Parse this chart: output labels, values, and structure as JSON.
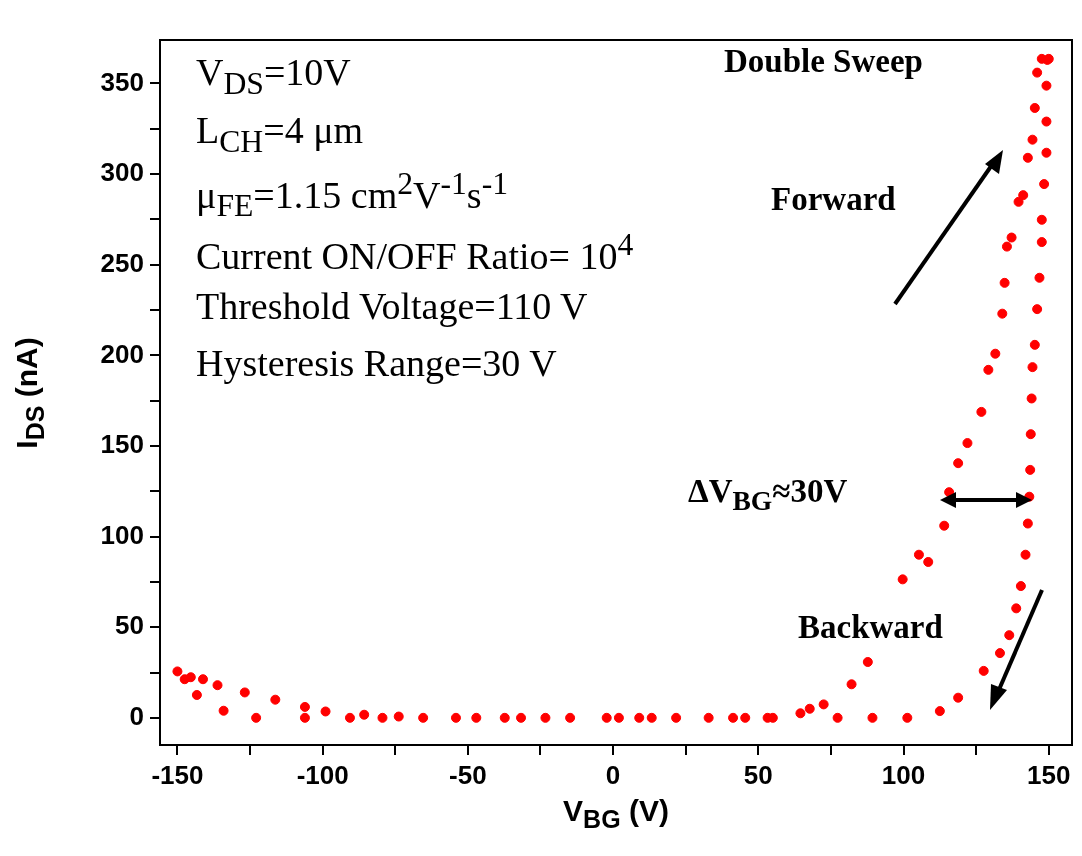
{
  "chart_data": {
    "type": "scatter",
    "xlabel": "V$_{BG}$ (V)",
    "ylabel": "I$_{DS}$ (nA)",
    "color": "#ff0000",
    "marker": "circle",
    "xlim": [
      -156,
      158
    ],
    "ylim": [
      -15,
      374
    ],
    "xticks": [
      -150,
      {
        "value": -125,
        "label": null
      },
      -100,
      {
        "value": -75,
        "label": null
      },
      -50,
      {
        "value": -25,
        "label": null
      },
      0,
      {
        "value": 25,
        "label": null
      },
      50,
      {
        "value": 75,
        "label": null
      },
      100,
      {
        "value": 125,
        "label": null
      },
      150
    ],
    "yticks": [
      0,
      {
        "value": 25,
        "label": null
      },
      50,
      {
        "value": 75,
        "label": null
      },
      100,
      {
        "value": 125,
        "label": null
      },
      150,
      {
        "value": 175,
        "label": null
      },
      200,
      {
        "value": 225,
        "label": null
      },
      250,
      {
        "value": 275,
        "label": null
      },
      300,
      {
        "value": 325,
        "label": null
      },
      350
    ],
    "x": [
      -150,
      -147.5,
      -145.4,
      -143.3,
      -141.2,
      -136.2,
      -134.1,
      -126.8,
      -122.9,
      -116.3,
      -106.1,
      -106.1,
      -99,
      -90.6,
      -85.7,
      -79.4,
      -73.8,
      -65.4,
      -54.1,
      -47.1,
      -37.3,
      -31.7,
      -23.3,
      -14.8,
      -2.2,
      2,
      9,
      13.3,
      21.7,
      32.9,
      41.3,
      45.5,
      53.2,
      55,
      64.5,
      67.7,
      72.5,
      82.1,
      87.7,
      99.7,
      105.3,
      108.5,
      114,
      115.7,
      118.8,
      122,
      126.8,
      129.2,
      131.6,
      134,
      134.8,
      135.6,
      137.2,
      139.6,
      141.2,
      142.8,
      144.4,
      145.2,
      146,
      147.6,
      150,
      149.5,
      149.2,
      149.2,
      149.2,
      148.4,
      147.6,
      147.6,
      146.8,
      146,
      145.2,
      144.4,
      144.1,
      143.8,
      143.6,
      143.3,
      142.8,
      142,
      140.4,
      138.8,
      136.4,
      133.2,
      127.6,
      118.8,
      112.5,
      101.3,
      89.3,
      77.3
    ],
    "values": [
      25.6,
      21.3,
      22.4,
      12.6,
      21.3,
      18,
      3.9,
      14,
      0,
      10,
      0,
      6,
      3.5,
      0,
      1.7,
      0,
      0.7,
      0,
      0,
      0,
      0,
      0,
      0,
      0,
      0,
      0,
      0,
      0,
      0,
      0,
      0,
      0,
      0,
      0,
      2.5,
      5,
      7.4,
      18.5,
      30.8,
      76.4,
      90,
      86,
      106,
      124.5,
      140.5,
      151.6,
      168.8,
      192,
      200.9,
      223,
      240,
      260,
      265,
      284.7,
      288.4,
      309,
      319,
      336.5,
      356,
      363.6,
      363.6,
      363,
      348.8,
      329,
      311.8,
      294.5,
      274.8,
      262.5,
      242.8,
      225.5,
      205.8,
      193.5,
      176.2,
      156.5,
      136.8,
      122,
      107.2,
      90,
      72.7,
      60.4,
      45.6,
      35.7,
      25.9,
      11.1,
      3.7,
      0,
      0,
      0
    ],
    "annotations": [
      "V$_{DS}$=10V",
      "L$_{CH}$=4 μm",
      "μ$_{FE}$=1.15 cm$^{2}$V$^{-1}$s$^{-1}$",
      "Current ON/OFF Ratio= 10$^{4}$",
      "Threshold Voltage=110 V",
      "Hysteresis Range=30 V",
      "Double Sweep",
      "Forward",
      "Backward",
      "ΔV$_{BG}$≈30V"
    ]
  }
}
